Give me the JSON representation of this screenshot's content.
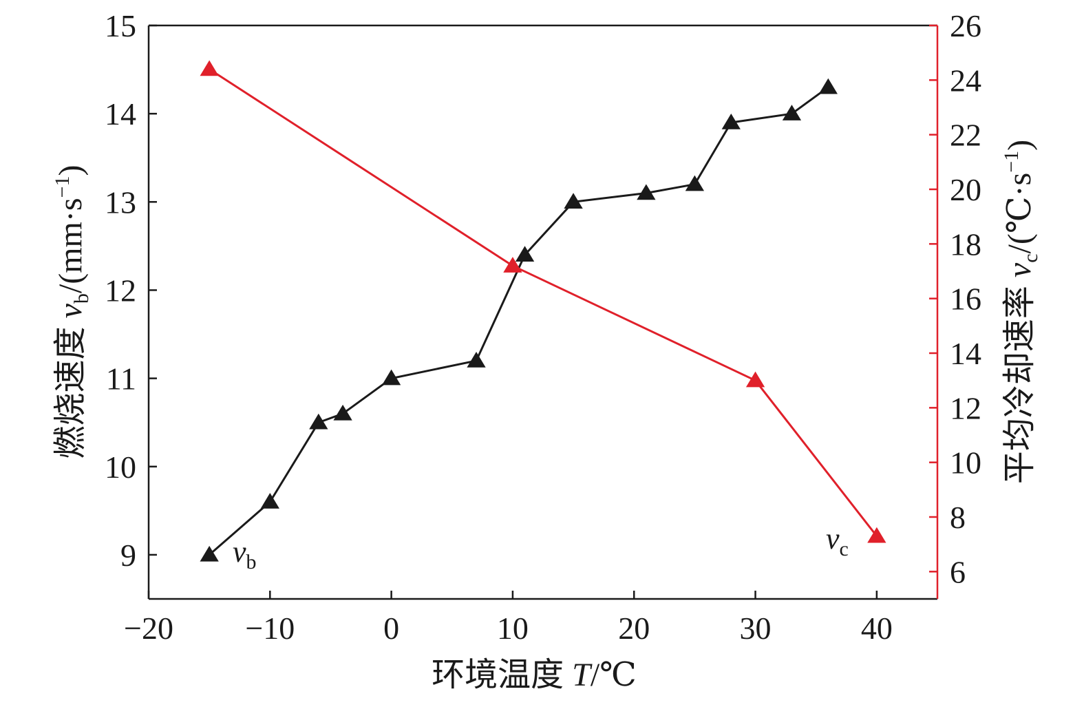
{
  "chart_data": {
    "type": "line",
    "xlabel_text": "环境温度 ",
    "xlabel_var": "T",
    "xlabel_unit": "/℃",
    "xlim": [
      -20,
      45
    ],
    "xticks": [
      -20,
      -10,
      0,
      10,
      20,
      30,
      40
    ],
    "xtick_labels": [
      "−20",
      "−10",
      "0",
      "10",
      "20",
      "30",
      "40"
    ],
    "left_axis": {
      "label_text": "燃烧速度 ",
      "label_var": "v",
      "label_sub": "b",
      "label_unit": "/(mm·s",
      "label_sup": "−1",
      "label_close": ")",
      "ylim": [
        8.5,
        15
      ],
      "ticks": [
        9,
        10,
        11,
        12,
        13,
        14,
        15
      ],
      "tick_labels": [
        "9",
        "10",
        "11",
        "12",
        "13",
        "14",
        "15"
      ],
      "color": "#1a1a1a"
    },
    "right_axis": {
      "label_text": "平均冷却速率 ",
      "label_var": "v",
      "label_sub": "c",
      "label_unit": "/(℃·s",
      "label_sup": "−1",
      "label_close": ")",
      "ylim": [
        5,
        26
      ],
      "ticks": [
        6,
        8,
        10,
        12,
        14,
        16,
        18,
        20,
        22,
        24,
        26
      ],
      "tick_labels": [
        "6",
        "8",
        "10",
        "12",
        "14",
        "16",
        "18",
        "20",
        "22",
        "24",
        "26"
      ],
      "color": "#e0202a"
    },
    "series": [
      {
        "name": "vb",
        "label_var": "v",
        "label_sub": "b",
        "axis": "left",
        "color": "#1a1a1a",
        "marker": "triangle",
        "x": [
          -15,
          -10,
          -6,
          -4,
          0,
          7,
          11,
          15,
          21,
          25,
          28,
          33,
          36
        ],
        "y": [
          9.0,
          9.6,
          10.5,
          10.6,
          11.0,
          11.2,
          12.4,
          13.0,
          13.1,
          13.2,
          13.9,
          14.0,
          14.3
        ]
      },
      {
        "name": "vc",
        "label_var": "v",
        "label_sub": "c",
        "axis": "right",
        "color": "#e0202a",
        "marker": "triangle",
        "x": [
          -15,
          10,
          30,
          40
        ],
        "y": [
          24.4,
          17.2,
          13.0,
          7.3
        ]
      }
    ]
  }
}
